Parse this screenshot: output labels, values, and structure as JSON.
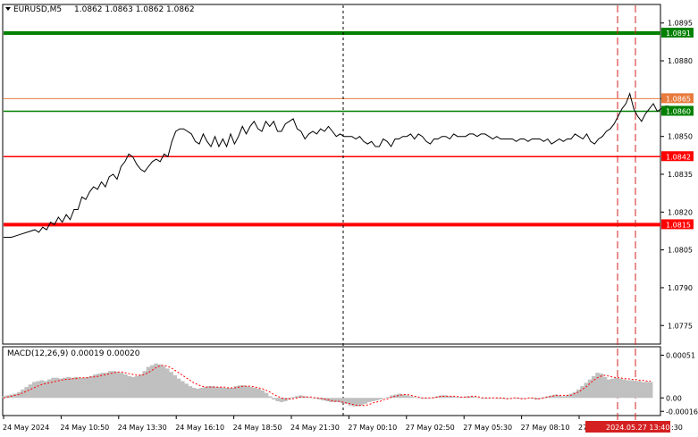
{
  "header": {
    "symbol": "EURUSD,M5",
    "ohlc": "1.0862 1.0863 1.0862 1.0862",
    "macd_label": "MACD(12,26,9) 0.00019 0.00020"
  },
  "colors": {
    "green": "#008000",
    "red": "#ff0000",
    "orange": "#e87a3c",
    "price": "#000000",
    "histogram": "#c0c0c0",
    "signal": "#ff0000",
    "grid": "#000000",
    "vline_dark": "#000000",
    "vline_red": "#d42020"
  },
  "chart_data": [
    {
      "type": "line",
      "title": "EURUSD,M5",
      "ylim": [
        1.0768,
        1.0902
      ],
      "y_ticks": [
        "1.0895",
        "1.0880",
        "1.0865",
        "1.0850",
        "1.0835",
        "1.0820",
        "1.0805",
        "1.0790",
        "1.0775"
      ],
      "x_ticks": [
        "24 May 2024",
        "24 May 10:50",
        "24 May 13:30",
        "24 May 16:10",
        "24 May 18:50",
        "24 May 21:30",
        "27 May 00:10",
        "27 May 02:50",
        "27 May 05:30",
        "27 May 08:10",
        "27 M"
      ],
      "current_time_label": "2024.05.27 13:40",
      "last_tick_fragment": ":30",
      "levels": [
        {
          "value": 1.0891,
          "label": "1.0891",
          "color": "green",
          "width": 4
        },
        {
          "value": 1.0865,
          "label": "1.0865",
          "color": "orange",
          "width": 1
        },
        {
          "value": 1.086,
          "label": "1.0860",
          "color": "green",
          "width": 1.5
        },
        {
          "value": 1.0842,
          "label": "1.0842",
          "color": "red",
          "width": 1.5
        },
        {
          "value": 1.0815,
          "label": "1.0815",
          "color": "red",
          "width": 4
        }
      ],
      "price_series": [
        [
          0,
          1.081
        ],
        [
          2,
          1.081
        ],
        [
          4,
          1.0811
        ],
        [
          6,
          1.0812
        ],
        [
          8,
          1.0813
        ],
        [
          9,
          1.0812
        ],
        [
          10,
          1.0814
        ],
        [
          11,
          1.0813
        ],
        [
          12,
          1.0816
        ],
        [
          13,
          1.0815
        ],
        [
          14,
          1.0818
        ],
        [
          15,
          1.0816
        ],
        [
          16,
          1.0819
        ],
        [
          17,
          1.0817
        ],
        [
          18,
          1.0821
        ],
        [
          19,
          1.0821
        ],
        [
          20,
          1.0826
        ],
        [
          21,
          1.0825
        ],
        [
          22,
          1.0828
        ],
        [
          23,
          1.083
        ],
        [
          24,
          1.0829
        ],
        [
          25,
          1.0832
        ],
        [
          26,
          1.083
        ],
        [
          27,
          1.0834
        ],
        [
          28,
          1.0835
        ],
        [
          29,
          1.0833
        ],
        [
          30,
          1.0838
        ],
        [
          31,
          1.084
        ],
        [
          32,
          1.0843
        ],
        [
          33,
          1.0842
        ],
        [
          34,
          1.0839
        ],
        [
          35,
          1.0837
        ],
        [
          36,
          1.0836
        ],
        [
          37,
          1.0838
        ],
        [
          38,
          1.084
        ],
        [
          39,
          1.0841
        ],
        [
          40,
          1.084
        ],
        [
          41,
          1.0843
        ],
        [
          42,
          1.0842
        ],
        [
          43,
          1.0848
        ],
        [
          44,
          1.0852
        ],
        [
          45,
          1.0853
        ],
        [
          46,
          1.0853
        ],
        [
          47,
          1.0852
        ],
        [
          48,
          1.0851
        ],
        [
          49,
          1.0848
        ],
        [
          50,
          1.0847
        ],
        [
          51,
          1.0851
        ],
        [
          52,
          1.0848
        ],
        [
          53,
          1.0846
        ],
        [
          54,
          1.085
        ],
        [
          55,
          1.0846
        ],
        [
          56,
          1.0849
        ],
        [
          57,
          1.0846
        ],
        [
          58,
          1.0851
        ],
        [
          59,
          1.0847
        ],
        [
          60,
          1.085
        ],
        [
          61,
          1.0854
        ],
        [
          62,
          1.0851
        ],
        [
          63,
          1.0854
        ],
        [
          64,
          1.0856
        ],
        [
          65,
          1.0853
        ],
        [
          66,
          1.0852
        ],
        [
          67,
          1.0856
        ],
        [
          68,
          1.0854
        ],
        [
          69,
          1.0856
        ],
        [
          70,
          1.0852
        ],
        [
          71,
          1.0852
        ],
        [
          72,
          1.0855
        ],
        [
          73,
          1.0856
        ],
        [
          74,
          1.0857
        ],
        [
          75,
          1.0853
        ],
        [
          76,
          1.0852
        ],
        [
          77,
          1.0849
        ],
        [
          78,
          1.0851
        ],
        [
          79,
          1.0852
        ],
        [
          80,
          1.0851
        ],
        [
          81,
          1.0853
        ],
        [
          82,
          1.0852
        ],
        [
          83,
          1.0854
        ],
        [
          84,
          1.0852
        ],
        [
          85,
          1.085
        ],
        [
          86,
          1.0851
        ],
        [
          87,
          1.085
        ],
        [
          88,
          1.085
        ],
        [
          89,
          1.085
        ],
        [
          90,
          1.0849
        ],
        [
          91,
          1.085
        ],
        [
          92,
          1.0848
        ],
        [
          93,
          1.0847
        ],
        [
          94,
          1.0848
        ],
        [
          95,
          1.0846
        ],
        [
          96,
          1.0846
        ],
        [
          97,
          1.0849
        ],
        [
          98,
          1.0848
        ],
        [
          99,
          1.0846
        ],
        [
          100,
          1.0849
        ],
        [
          101,
          1.0849
        ],
        [
          102,
          1.085
        ],
        [
          103,
          1.085
        ],
        [
          104,
          1.0851
        ],
        [
          105,
          1.0849
        ],
        [
          106,
          1.0851
        ],
        [
          107,
          1.085
        ],
        [
          108,
          1.0848
        ],
        [
          109,
          1.0847
        ],
        [
          110,
          1.0849
        ],
        [
          111,
          1.0849
        ],
        [
          112,
          1.085
        ],
        [
          113,
          1.085
        ],
        [
          114,
          1.0849
        ],
        [
          115,
          1.0851
        ],
        [
          116,
          1.085
        ],
        [
          117,
          1.085
        ],
        [
          118,
          1.085
        ],
        [
          119,
          1.0851
        ],
        [
          120,
          1.0851
        ],
        [
          121,
          1.085
        ],
        [
          122,
          1.0851
        ],
        [
          123,
          1.0851
        ],
        [
          124,
          1.085
        ],
        [
          125,
          1.0849
        ],
        [
          126,
          1.085
        ],
        [
          127,
          1.0849
        ],
        [
          128,
          1.0849
        ],
        [
          129,
          1.0849
        ],
        [
          130,
          1.0849
        ],
        [
          131,
          1.0848
        ],
        [
          132,
          1.0849
        ],
        [
          133,
          1.0849
        ],
        [
          134,
          1.0848
        ],
        [
          135,
          1.0849
        ],
        [
          136,
          1.0849
        ],
        [
          137,
          1.0849
        ],
        [
          138,
          1.0848
        ],
        [
          139,
          1.0849
        ],
        [
          140,
          1.0847
        ],
        [
          141,
          1.0848
        ],
        [
          142,
          1.0849
        ],
        [
          143,
          1.0848
        ],
        [
          144,
          1.0849
        ],
        [
          145,
          1.0849
        ],
        [
          146,
          1.0851
        ],
        [
          147,
          1.085
        ],
        [
          148,
          1.0849
        ],
        [
          149,
          1.0851
        ],
        [
          150,
          1.0848
        ],
        [
          151,
          1.0847
        ],
        [
          152,
          1.0849
        ],
        [
          153,
          1.085
        ],
        [
          154,
          1.0852
        ],
        [
          155,
          1.0853
        ],
        [
          156,
          1.0855
        ],
        [
          157,
          1.0858
        ],
        [
          158,
          1.0861
        ],
        [
          159,
          1.0863
        ],
        [
          160,
          1.0867
        ],
        [
          161,
          1.0861
        ],
        [
          162,
          1.0858
        ],
        [
          163,
          1.0856
        ],
        [
          164,
          1.0859
        ],
        [
          165,
          1.0861
        ],
        [
          166,
          1.0863
        ],
        [
          167,
          1.086
        ],
        [
          168,
          1.0861
        ],
        [
          169,
          1.0862
        ],
        [
          170,
          1.0862
        ]
      ]
    },
    {
      "type": "bar",
      "title": "MACD(12,26,9) 0.00019 0.00020",
      "ylim": [
        -0.0002,
        0.0006
      ],
      "y_ticks": [
        "0.00051",
        "0.00",
        "-0.00016"
      ],
      "histogram": [
        2e-05,
        3e-05,
        4e-05,
        5e-05,
        7e-05,
        0.0001,
        0.00013,
        0.00016,
        0.00019,
        0.0002,
        0.00021,
        0.0002,
        0.00022,
        0.00024,
        0.00024,
        0.00023,
        0.00024,
        0.00025,
        0.00024,
        0.00025,
        0.00024,
        0.00024,
        0.00025,
        0.00026,
        0.00028,
        0.00029,
        0.0003,
        0.0003,
        0.00032,
        0.00032,
        0.00031,
        0.0003,
        0.00028,
        0.00026,
        0.00025,
        0.00026,
        0.00028,
        0.00032,
        0.00037,
        0.00039,
        0.00041,
        0.0004,
        0.00038,
        0.00035,
        0.00031,
        0.00027,
        0.00023,
        0.0002,
        0.00017,
        0.00014,
        0.00012,
        0.00011,
        0.00012,
        0.00013,
        0.00014,
        0.00014,
        0.00013,
        0.00013,
        0.00012,
        0.00012,
        0.00012,
        0.00014,
        0.00015,
        0.00015,
        0.00014,
        0.00013,
        0.00012,
        0.00011,
        9e-05,
        6e-05,
        2e-05,
        -2e-05,
        -4e-05,
        -5e-05,
        -4e-05,
        -2e-05,
        1e-05,
        2e-05,
        3e-05,
        2e-05,
        1e-05,
        0.0,
        -1e-05,
        -2e-05,
        -3e-05,
        -4e-05,
        -5e-05,
        -5e-05,
        -5e-05,
        -6e-05,
        -7e-05,
        -9e-05,
        -0.0001,
        -0.0001,
        -9e-05,
        -7e-05,
        -5e-05,
        -4e-05,
        -3e-05,
        -2e-05,
        0.0,
        1e-05,
        3e-05,
        4e-05,
        5e-05,
        4e-05,
        3e-05,
        2e-05,
        1e-05,
        0.0,
        -1e-05,
        -1e-05,
        0.0,
        1e-05,
        2e-05,
        3e-05,
        3e-05,
        2e-05,
        2e-05,
        1e-05,
        1e-05,
        1e-05,
        2e-05,
        2e-05,
        1e-05,
        0.0,
        -1e-05,
        -1e-05,
        0.0,
        0.0,
        -1e-05,
        -1e-05,
        -1e-05,
        0.0,
        0.0,
        -1e-05,
        -1e-05,
        0.0,
        0.0,
        -1e-05,
        -2e-05,
        -1e-05,
        1e-05,
        2e-05,
        3e-05,
        4e-05,
        3e-05,
        2e-05,
        3e-05,
        5e-05,
        7e-05,
        0.0001,
        0.00014,
        0.00018,
        0.00022,
        0.00026,
        0.0003,
        0.00029,
        0.00025,
        0.00022,
        0.00023,
        0.00024,
        0.00023,
        0.00022,
        0.00021,
        0.00021,
        0.0002,
        0.0002,
        0.00019,
        0.00019,
        0.00019
      ],
      "signal": [
        0.0,
        1e-05,
        2e-05,
        3e-05,
        4e-05,
        6e-05,
        8e-05,
        0.0001,
        0.00012,
        0.00014,
        0.00016,
        0.00017,
        0.00018,
        0.00019,
        0.0002,
        0.00021,
        0.00022,
        0.00022,
        0.00023,
        0.00023,
        0.00024,
        0.00024,
        0.00024,
        0.00025,
        0.00025,
        0.00026,
        0.00027,
        0.00028,
        0.00029,
        0.0003,
        0.00031,
        0.00031,
        0.0003,
        0.00029,
        0.00028,
        0.00027,
        0.00027,
        0.00028,
        0.0003,
        0.00033,
        0.00036,
        0.00038,
        0.00039,
        0.00038,
        0.00036,
        0.00033,
        0.0003,
        0.00027,
        0.00024,
        0.00021,
        0.00018,
        0.00016,
        0.00014,
        0.00013,
        0.00013,
        0.00013,
        0.00013,
        0.00013,
        0.00013,
        0.00012,
        0.00012,
        0.00012,
        0.00013,
        0.00014,
        0.00014,
        0.00014,
        0.00013,
        0.00012,
        0.00011,
        9e-05,
        7e-05,
        4e-05,
        2e-05,
        0.0,
        -1e-05,
        -1e-05,
        -1e-05,
        0.0,
        1e-05,
        1e-05,
        1e-05,
        1e-05,
        0.0,
        0.0,
        -1e-05,
        -2e-05,
        -3e-05,
        -4e-05,
        -4e-05,
        -5e-05,
        -6e-05,
        -7e-05,
        -8e-05,
        -9e-05,
        -9e-05,
        -9e-05,
        -8e-05,
        -6e-05,
        -5e-05,
        -4e-05,
        -2e-05,
        -1e-05,
        1e-05,
        2e-05,
        3e-05,
        4e-05,
        4e-05,
        3e-05,
        2e-05,
        1e-05,
        0.0,
        0.0,
        0.0,
        0.0,
        1e-05,
        2e-05,
        2e-05,
        2e-05,
        2e-05,
        2e-05,
        1e-05,
        1e-05,
        1e-05,
        2e-05,
        2e-05,
        1e-05,
        0.0,
        0.0,
        0.0,
        0.0,
        0.0,
        0.0,
        -1e-05,
        -1e-05,
        0.0,
        0.0,
        -1e-05,
        -1e-05,
        0.0,
        0.0,
        -1e-05,
        -1e-05,
        0.0,
        1e-05,
        2e-05,
        3e-05,
        3e-05,
        3e-05,
        3e-05,
        3e-05,
        5e-05,
        7e-05,
        0.0001,
        0.00013,
        0.00017,
        0.00021,
        0.00024,
        0.00026,
        0.00027,
        0.00026,
        0.00025,
        0.00024,
        0.00024,
        0.00023,
        0.00023,
        0.00022,
        0.00022,
        0.00021,
        0.00021,
        0.0002,
        0.0002
      ]
    }
  ]
}
